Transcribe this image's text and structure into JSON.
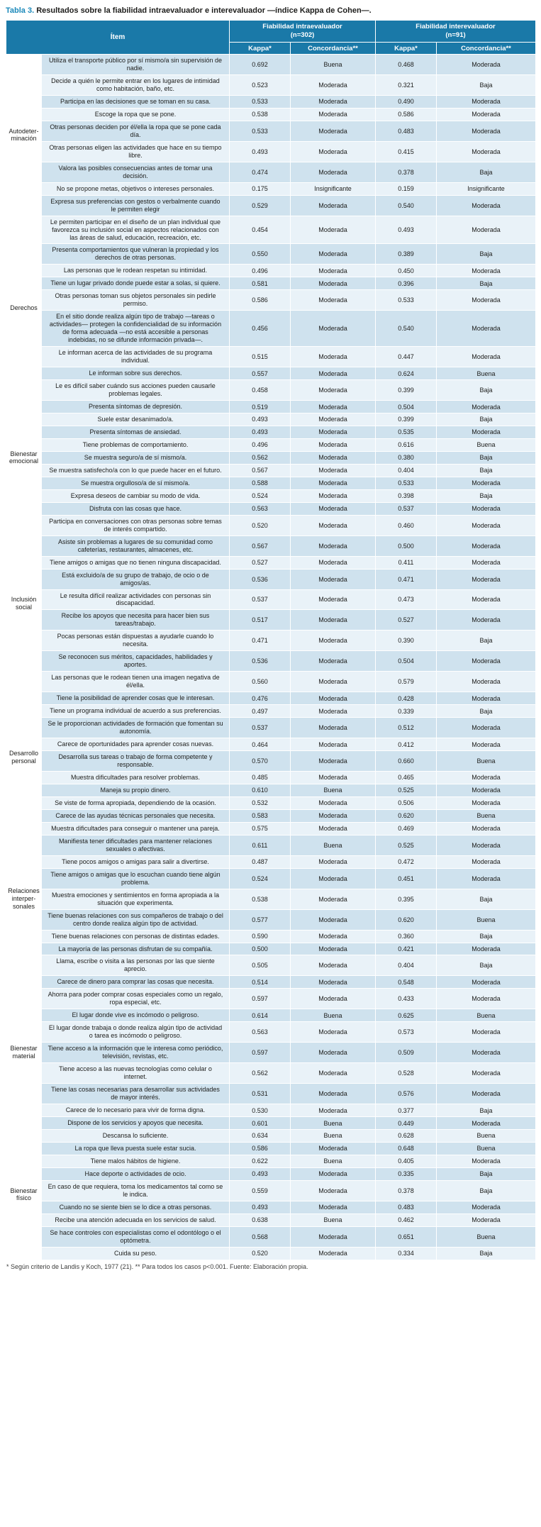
{
  "title": {
    "label": "Tabla 3.",
    "text": "Resultados sobre la fiabilidad intraevaluador e interevaluador —índice Kappa de Cohen—."
  },
  "table": {
    "header": {
      "item": "Ítem",
      "intra_line1": "Fiabilidad intraevaluador",
      "intra_line2": "(n=302)",
      "inter_line1": "Fiabilidad interevaluador",
      "inter_line2": "(n=91)",
      "kappa": "Kappa*",
      "concordancia": "Concordancia**"
    },
    "groups": [
      {
        "category": "Autodeter-minación",
        "rows": [
          {
            "item": "Utiliza el transporte público por sí mismo/a sin supervisión de nadie.",
            "kappa_intra": "0.692",
            "conc_intra": "Buena",
            "kappa_inter": "0.468",
            "conc_inter": "Moderada"
          },
          {
            "item": "Decide a quién le permite entrar en los lugares de intimidad como habitación, baño, etc.",
            "kappa_intra": "0.523",
            "conc_intra": "Moderada",
            "kappa_inter": "0.321",
            "conc_inter": "Baja"
          },
          {
            "item": "Participa en las decisiones que se toman en su casa.",
            "kappa_intra": "0.533",
            "conc_intra": "Moderada",
            "kappa_inter": "0.490",
            "conc_inter": "Moderada"
          },
          {
            "item": "Escoge la ropa que se pone.",
            "kappa_intra": "0.538",
            "conc_intra": "Moderada",
            "kappa_inter": "0.586",
            "conc_inter": "Moderada"
          },
          {
            "item": "Otras personas deciden por él/ella la ropa que se pone cada día.",
            "kappa_intra": "0.533",
            "conc_intra": "Moderada",
            "kappa_inter": "0.483",
            "conc_inter": "Moderada"
          },
          {
            "item": "Otras personas eligen las actividades que hace en su tiempo libre.",
            "kappa_intra": "0.493",
            "conc_intra": "Moderada",
            "kappa_inter": "0.415",
            "conc_inter": "Moderada"
          },
          {
            "item": "Valora las posibles consecuencias antes de tomar una decisión.",
            "kappa_intra": "0.474",
            "conc_intra": "Moderada",
            "kappa_inter": "0.378",
            "conc_inter": "Baja"
          },
          {
            "item": "No se propone metas, objetivos o intereses personales.",
            "kappa_intra": "0.175",
            "conc_intra": "Insignificante",
            "kappa_inter": "0.159",
            "conc_inter": "Insignificante"
          },
          {
            "item": "Expresa sus preferencias con gestos o verbalmente cuando le permiten elegir",
            "kappa_intra": "0.529",
            "conc_intra": "Moderada",
            "kappa_inter": "0.540",
            "conc_inter": "Moderada"
          }
        ]
      },
      {
        "category": "Derechos",
        "rows": [
          {
            "item": "Le permiten participar en el diseño de un plan individual que favorezca su inclusión social en aspectos relacionados con las áreas de salud, educación, recreación, etc.",
            "kappa_intra": "0.454",
            "conc_intra": "Moderada",
            "kappa_inter": "0.493",
            "conc_inter": "Moderada"
          },
          {
            "item": "Presenta comportamientos que vulneran la propiedad y los derechos de otras personas.",
            "kappa_intra": "0.550",
            "conc_intra": "Moderada",
            "kappa_inter": "0.389",
            "conc_inter": "Baja"
          },
          {
            "item": "Las personas que le rodean respetan su intimidad.",
            "kappa_intra": "0.496",
            "conc_intra": "Moderada",
            "kappa_inter": "0.450",
            "conc_inter": "Moderada"
          },
          {
            "item": "Tiene un lugar privado donde puede estar a solas, si quiere.",
            "kappa_intra": "0.581",
            "conc_intra": "Moderada",
            "kappa_inter": "0.396",
            "conc_inter": "Baja"
          },
          {
            "item": "Otras personas toman sus objetos personales sin pedirle permiso.",
            "kappa_intra": "0.586",
            "conc_intra": "Moderada",
            "kappa_inter": "0.533",
            "conc_inter": "Moderada"
          },
          {
            "item": "En el sitio donde realiza algún tipo de trabajo —tareas o actividades— protegen la confidencialidad de su información de forma adecuada —no está accesible a personas indebidas, no se difunde información privada—.",
            "kappa_intra": "0.456",
            "conc_intra": "Moderada",
            "kappa_inter": "0.540",
            "conc_inter": "Moderada"
          },
          {
            "item": "Le informan acerca de las actividades de su programa individual.",
            "kappa_intra": "0.515",
            "conc_intra": "Moderada",
            "kappa_inter": "0.447",
            "conc_inter": "Moderada"
          },
          {
            "item": "Le informan sobre sus derechos.",
            "kappa_intra": "0.557",
            "conc_intra": "Moderada",
            "kappa_inter": "0.624",
            "conc_inter": "Buena"
          },
          {
            "item": "Le es difícil saber cuándo sus acciones pueden causarle problemas legales.",
            "kappa_intra": "0.458",
            "conc_intra": "Moderada",
            "kappa_inter": "0.399",
            "conc_inter": "Baja"
          }
        ]
      },
      {
        "category": "Bienestar emocional",
        "rows": [
          {
            "item": "Presenta síntomas de depresión.",
            "kappa_intra": "0.519",
            "conc_intra": "Moderada",
            "kappa_inter": "0.504",
            "conc_inter": "Moderada"
          },
          {
            "item": "Suele estar desanimado/a.",
            "kappa_intra": "0.493",
            "conc_intra": "Moderada",
            "kappa_inter": "0.399",
            "conc_inter": "Baja"
          },
          {
            "item": "Presenta síntomas de ansiedad.",
            "kappa_intra": "0.493",
            "conc_intra": "Moderada",
            "kappa_inter": "0.535",
            "conc_inter": "Moderada"
          },
          {
            "item": "Tiene problemas de comportamiento.",
            "kappa_intra": "0.496",
            "conc_intra": "Moderada",
            "kappa_inter": "0.616",
            "conc_inter": "Buena"
          },
          {
            "item": "Se muestra seguro/a de sí mismo/a.",
            "kappa_intra": "0.562",
            "conc_intra": "Moderada",
            "kappa_inter": "0.380",
            "conc_inter": "Baja"
          },
          {
            "item": "Se muestra satisfecho/a con lo que puede hacer en el futuro.",
            "kappa_intra": "0.567",
            "conc_intra": "Moderada",
            "kappa_inter": "0.404",
            "conc_inter": "Baja"
          },
          {
            "item": "Se muestra orgulloso/a de sí mismo/a.",
            "kappa_intra": "0.588",
            "conc_intra": "Moderada",
            "kappa_inter": "0.533",
            "conc_inter": "Moderada"
          },
          {
            "item": "Expresa deseos de cambiar su modo de vida.",
            "kappa_intra": "0.524",
            "conc_intra": "Moderada",
            "kappa_inter": "0.398",
            "conc_inter": "Baja"
          },
          {
            "item": "Disfruta con las cosas que hace.",
            "kappa_intra": "0.563",
            "conc_intra": "Moderada",
            "kappa_inter": "0.537",
            "conc_inter": "Moderada"
          }
        ]
      },
      {
        "category": "Inclusión social",
        "rows": [
          {
            "item": "Participa en conversaciones con otras personas sobre temas de interés compartido.",
            "kappa_intra": "0.520",
            "conc_intra": "Moderada",
            "kappa_inter": "0.460",
            "conc_inter": "Moderada"
          },
          {
            "item": "Asiste sin problemas a lugares de su comunidad como cafeterías, restaurantes, almacenes, etc.",
            "kappa_intra": "0.567",
            "conc_intra": "Moderada",
            "kappa_inter": "0.500",
            "conc_inter": "Moderada"
          },
          {
            "item": "Tiene amigos o amigas que no tienen ninguna discapacidad.",
            "kappa_intra": "0.527",
            "conc_intra": "Moderada",
            "kappa_inter": "0.411",
            "conc_inter": "Moderada"
          },
          {
            "item": "Está excluido/a de su grupo de trabajo, de ocio o de amigos/as.",
            "kappa_intra": "0.536",
            "conc_intra": "Moderada",
            "kappa_inter": "0.471",
            "conc_inter": "Moderada"
          },
          {
            "item": "Le resulta difícil realizar actividades con personas sin discapacidad.",
            "kappa_intra": "0.537",
            "conc_intra": "Moderada",
            "kappa_inter": "0.473",
            "conc_inter": "Moderada"
          },
          {
            "item": "Recibe los apoyos que necesita para hacer bien sus tareas/trabajo.",
            "kappa_intra": "0.517",
            "conc_intra": "Moderada",
            "kappa_inter": "0.527",
            "conc_inter": "Moderada"
          },
          {
            "item": "Pocas personas están dispuestas a ayudarle cuando lo necesita.",
            "kappa_intra": "0.471",
            "conc_intra": "Moderada",
            "kappa_inter": "0.390",
            "conc_inter": "Baja"
          },
          {
            "item": "Se reconocen sus méritos, capacidades, habilidades y aportes.",
            "kappa_intra": "0.536",
            "conc_intra": "Moderada",
            "kappa_inter": "0.504",
            "conc_inter": "Moderada"
          },
          {
            "item": "Las personas que le rodean tienen una imagen negativa de él/ella.",
            "kappa_intra": "0.560",
            "conc_intra": "Moderada",
            "kappa_inter": "0.579",
            "conc_inter": "Moderada"
          }
        ]
      },
      {
        "category": "Desarrollo personal",
        "rows": [
          {
            "item": "Tiene la posibilidad de aprender cosas que le interesan.",
            "kappa_intra": "0.476",
            "conc_intra": "Moderada",
            "kappa_inter": "0.428",
            "conc_inter": "Moderada"
          },
          {
            "item": "Tiene un programa individual de acuerdo a sus preferencias.",
            "kappa_intra": "0.497",
            "conc_intra": "Moderada",
            "kappa_inter": "0.339",
            "conc_inter": "Baja"
          },
          {
            "item": "Se le proporcionan actividades de formación que fomentan su autonomía.",
            "kappa_intra": "0.537",
            "conc_intra": "Moderada",
            "kappa_inter": "0.512",
            "conc_inter": "Moderada"
          },
          {
            "item": "Carece de oportunidades para aprender cosas nuevas.",
            "kappa_intra": "0.464",
            "conc_intra": "Moderada",
            "kappa_inter": "0.412",
            "conc_inter": "Moderada"
          },
          {
            "item": "Desarrolla sus tareas o trabajo de forma competente y responsable.",
            "kappa_intra": "0.570",
            "conc_intra": "Moderada",
            "kappa_inter": "0.660",
            "conc_inter": "Buena"
          },
          {
            "item": "Muestra dificultades para resolver problemas.",
            "kappa_intra": "0.485",
            "conc_intra": "Moderada",
            "kappa_inter": "0.465",
            "conc_inter": "Moderada"
          },
          {
            "item": "Maneja su propio dinero.",
            "kappa_intra": "0.610",
            "conc_intra": "Buena",
            "kappa_inter": "0.525",
            "conc_inter": "Moderada"
          },
          {
            "item": "Se viste de forma apropiada, dependiendo de la ocasión.",
            "kappa_intra": "0.532",
            "conc_intra": "Moderada",
            "kappa_inter": "0.506",
            "conc_inter": "Moderada"
          },
          {
            "item": "Carece de las ayudas técnicas personales que necesita.",
            "kappa_intra": "0.583",
            "conc_intra": "Moderada",
            "kappa_inter": "0.620",
            "conc_inter": "Buena"
          }
        ]
      },
      {
        "category": "Relaciones interper-sonales",
        "rows": [
          {
            "item": "Muestra dificultades para conseguir o mantener una pareja.",
            "kappa_intra": "0.575",
            "conc_intra": "Moderada",
            "kappa_inter": "0.469",
            "conc_inter": "Moderada"
          },
          {
            "item": "Manifiesta tener dificultades para mantener relaciones sexuales o afectivas.",
            "kappa_intra": "0.611",
            "conc_intra": "Buena",
            "kappa_inter": "0.525",
            "conc_inter": "Moderada"
          },
          {
            "item": "Tiene pocos amigos o amigas para salir a divertirse.",
            "kappa_intra": "0.487",
            "conc_intra": "Moderada",
            "kappa_inter": "0.472",
            "conc_inter": "Moderada"
          },
          {
            "item": "Tiene amigos o amigas que lo escuchan cuando tiene algún problema.",
            "kappa_intra": "0.524",
            "conc_intra": "Moderada",
            "kappa_inter": "0.451",
            "conc_inter": "Moderada"
          },
          {
            "item": "Muestra emociones y sentimientos en forma apropiada a la situación que experimenta.",
            "kappa_intra": "0.538",
            "conc_intra": "Moderada",
            "kappa_inter": "0.395",
            "conc_inter": "Baja"
          },
          {
            "item": "Tiene buenas relaciones con sus compañeros de trabajo o del centro donde realiza algún tipo de actividad.",
            "kappa_intra": "0.577",
            "conc_intra": "Moderada",
            "kappa_inter": "0.620",
            "conc_inter": "Buena"
          },
          {
            "item": "Tiene buenas relaciones con personas de distintas edades.",
            "kappa_intra": "0.590",
            "conc_intra": "Moderada",
            "kappa_inter": "0.360",
            "conc_inter": "Baja"
          },
          {
            "item": "La mayoría de las personas disfrutan de su compañía.",
            "kappa_intra": "0.500",
            "conc_intra": "Moderada",
            "kappa_inter": "0.421",
            "conc_inter": "Moderada"
          },
          {
            "item": "Llama, escribe o visita a las personas por las que siente aprecio.",
            "kappa_intra": "0.505",
            "conc_intra": "Moderada",
            "kappa_inter": "0.404",
            "conc_inter": "Baja"
          }
        ]
      },
      {
        "category": "Bienestar material",
        "rows": [
          {
            "item": "Carece de dinero para comprar las cosas que necesita.",
            "kappa_intra": "0.514",
            "conc_intra": "Moderada",
            "kappa_inter": "0.548",
            "conc_inter": "Moderada"
          },
          {
            "item": "Ahorra para poder comprar cosas especiales como un regalo, ropa especial, etc.",
            "kappa_intra": "0.597",
            "conc_intra": "Moderada",
            "kappa_inter": "0.433",
            "conc_inter": "Moderada"
          },
          {
            "item": "El lugar donde vive es incómodo o peligroso.",
            "kappa_intra": "0.614",
            "conc_intra": "Buena",
            "kappa_inter": "0.625",
            "conc_inter": "Buena"
          },
          {
            "item": "El lugar donde trabaja o donde realiza algún tipo de actividad o tarea es incómodo o peligroso.",
            "kappa_intra": "0.563",
            "conc_intra": "Moderada",
            "kappa_inter": "0.573",
            "conc_inter": "Moderada"
          },
          {
            "item": "Tiene acceso a la información que le interesa como periódico, televisión, revistas, etc.",
            "kappa_intra": "0.597",
            "conc_intra": "Moderada",
            "kappa_inter": "0.509",
            "conc_inter": "Moderada"
          },
          {
            "item": "Tiene acceso a las nuevas tecnologías como celular o internet.",
            "kappa_intra": "0.562",
            "conc_intra": "Moderada",
            "kappa_inter": "0.528",
            "conc_inter": "Moderada"
          },
          {
            "item": "Tiene las cosas necesarias para desarrollar sus actividades de mayor interés.",
            "kappa_intra": "0.531",
            "conc_intra": "Moderada",
            "kappa_inter": "0.576",
            "conc_inter": "Moderada"
          },
          {
            "item": "Carece de lo necesario para vivir de forma digna.",
            "kappa_intra": "0.530",
            "conc_intra": "Moderada",
            "kappa_inter": "0.377",
            "conc_inter": "Baja"
          },
          {
            "item": "Dispone de los servicios y apoyos que necesita.",
            "kappa_intra": "0.601",
            "conc_intra": "Buena",
            "kappa_inter": "0.449",
            "conc_inter": "Moderada"
          }
        ]
      },
      {
        "category": "Bienestar físico",
        "rows": [
          {
            "item": "Descansa lo suficiente.",
            "kappa_intra": "0.634",
            "conc_intra": "Buena",
            "kappa_inter": "0.628",
            "conc_inter": "Buena"
          },
          {
            "item": "La ropa que lleva puesta suele estar sucia.",
            "kappa_intra": "0.586",
            "conc_intra": "Moderada",
            "kappa_inter": "0.648",
            "conc_inter": "Buena"
          },
          {
            "item": "Tiene malos hábitos de higiene.",
            "kappa_intra": "0.622",
            "conc_intra": "Buena",
            "kappa_inter": "0.405",
            "conc_inter": "Moderada"
          },
          {
            "item": "Hace deporte o actividades de ocio.",
            "kappa_intra": "0.493",
            "conc_intra": "Moderada",
            "kappa_inter": "0.335",
            "conc_inter": "Baja"
          },
          {
            "item": "En caso de que requiera, toma los medicamentos tal como se le indica.",
            "kappa_intra": "0.559",
            "conc_intra": "Moderada",
            "kappa_inter": "0.378",
            "conc_inter": "Baja"
          },
          {
            "item": "Cuando no se siente bien se lo dice a otras personas.",
            "kappa_intra": "0.493",
            "conc_intra": "Moderada",
            "kappa_inter": "0.483",
            "conc_inter": "Moderada"
          },
          {
            "item": "Recibe una atención adecuada en los servicios de salud.",
            "kappa_intra": "0.638",
            "conc_intra": "Buena",
            "kappa_inter": "0.462",
            "conc_inter": "Moderada"
          },
          {
            "item": "Se hace controles con especialistas como el odontólogo o el optómetra.",
            "kappa_intra": "0.568",
            "conc_intra": "Moderada",
            "kappa_inter": "0.651",
            "conc_inter": "Buena"
          },
          {
            "item": "Cuida su peso.",
            "kappa_intra": "0.520",
            "conc_intra": "Moderada",
            "kappa_inter": "0.334",
            "conc_inter": "Baja"
          }
        ]
      }
    ]
  },
  "footnote": "* Según criterio de Landis y Koch, 1977 (21). ** Para todos los casos p<0.001. Fuente: Elaboración propia."
}
